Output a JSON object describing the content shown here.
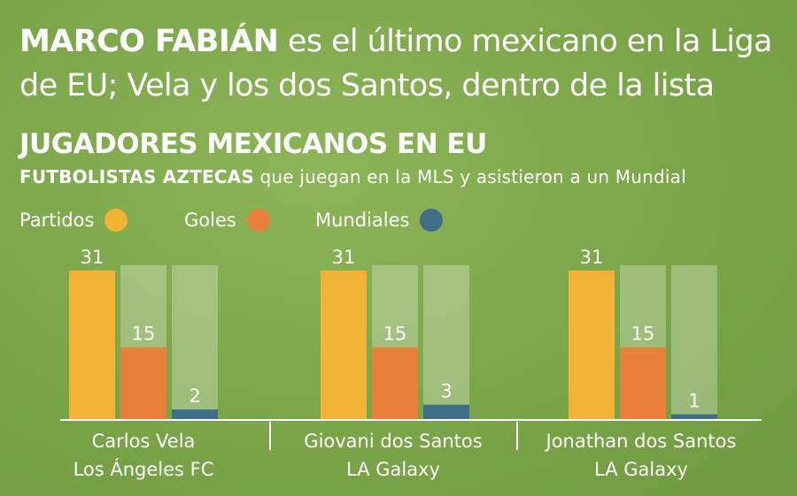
{
  "headline": {
    "bold": "MARCO FABIÁN",
    "rest": " es el último mexicano en la Liga de EU; Vela y los dos Santos, dentro de la lista"
  },
  "section_title": "JUGADORES MEXICANOS EN EU",
  "subtitle": {
    "bold": "FUTBOLISTAS AZTECAS",
    "rest": " que juegan en la MLS y asistieron a un Mundial"
  },
  "legend": [
    {
      "label": "Partidos",
      "color": "#f2b233"
    },
    {
      "label": "Goles",
      "color": "#e9803a"
    },
    {
      "label": "Mundiales",
      "color": "#3e6f86"
    }
  ],
  "chart_data": {
    "type": "bar",
    "categories": [
      {
        "name": "Carlos Vela",
        "team": "Los Ángeles FC"
      },
      {
        "name": "Giovani dos Santos",
        "team": "LA Galaxy"
      },
      {
        "name": "Jonathan dos Santos",
        "team": "LA Galaxy"
      }
    ],
    "series": [
      {
        "name": "Partidos",
        "values": [
          31,
          31,
          31
        ],
        "color": "#f2b233"
      },
      {
        "name": "Goles",
        "values": [
          15,
          15,
          15
        ],
        "color": "#e9803a"
      },
      {
        "name": "Mundiales",
        "values": [
          2,
          3,
          1
        ],
        "color": "#3e6f86"
      }
    ],
    "ylim": [
      0,
      31
    ],
    "track_color": "rgba(255,255,255,0.28)",
    "grid": false
  }
}
